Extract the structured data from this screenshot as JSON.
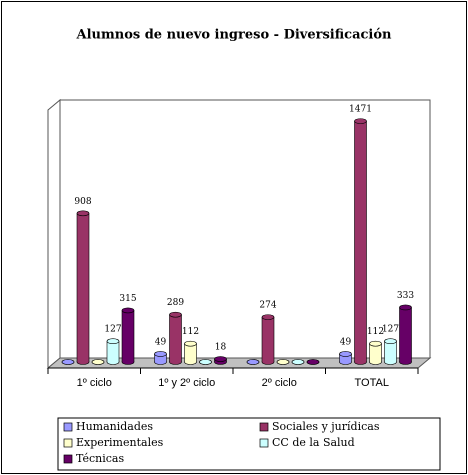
{
  "chart_data": {
    "type": "bar3d",
    "title": "Alumnos de nuevo ingreso - Diversificación",
    "categories": [
      "1º ciclo",
      "1º y 2º ciclo",
      "2º ciclo",
      "TOTAL"
    ],
    "series": [
      {
        "name": "Humanidades",
        "color": "#9999ff",
        "values": [
          0,
          49,
          0,
          49
        ]
      },
      {
        "name": "Sociales y jurídicas",
        "color": "#993366",
        "values": [
          908,
          289,
          274,
          1471
        ]
      },
      {
        "name": "Experimentales",
        "color": "#ffffcc",
        "values": [
          0,
          112,
          0,
          112
        ]
      },
      {
        "name": "CC de la Salud",
        "color": "#ccffff",
        "values": [
          127,
          0,
          0,
          127
        ]
      },
      {
        "name": "Técnicas",
        "color": "#660066",
        "values": [
          315,
          18,
          0,
          333
        ]
      }
    ],
    "ylim": [
      0,
      1600
    ],
    "legend": "bottom"
  }
}
